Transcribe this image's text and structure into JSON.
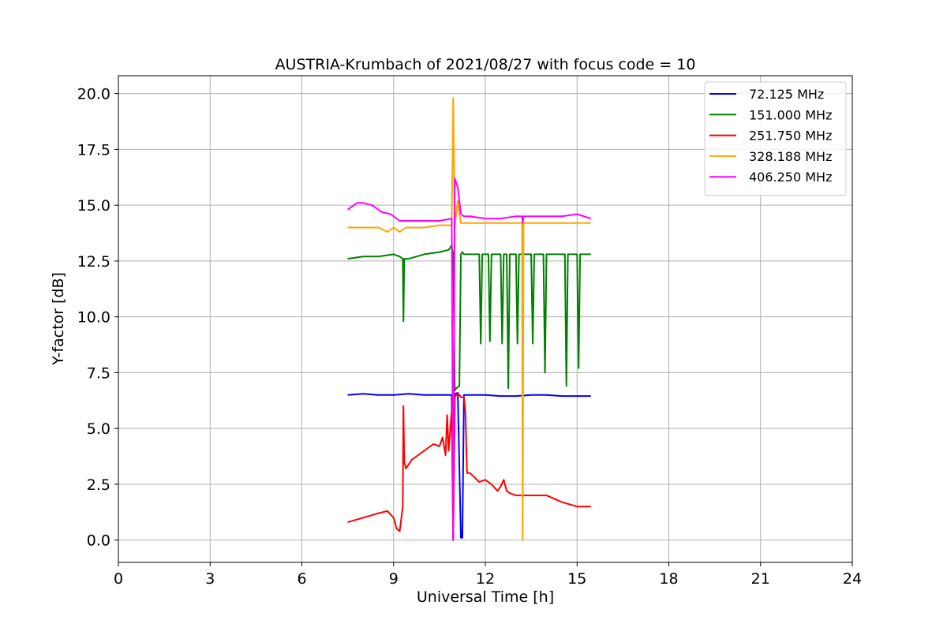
{
  "chart_data": {
    "type": "line",
    "title": "AUSTRIA-Krumbach of 2021/08/27 with focus code = 10",
    "xlabel": "Universal Time [h]",
    "ylabel": "Y-factor [dB]",
    "xlim": [
      0,
      24
    ],
    "ylim": [
      -1.0,
      20.8
    ],
    "xticks": [
      0,
      3,
      6,
      9,
      12,
      15,
      18,
      21,
      24
    ],
    "xtick_labels": [
      "0",
      "3",
      "6",
      "9",
      "12",
      "15",
      "18",
      "21",
      "24"
    ],
    "yticks": [
      0.0,
      2.5,
      5.0,
      7.5,
      10.0,
      12.5,
      15.0,
      17.5,
      20.0
    ],
    "ytick_labels": [
      "0.0",
      "2.5",
      "5.0",
      "7.5",
      "10.0",
      "12.5",
      "15.0",
      "17.5",
      "20.0"
    ],
    "grid": true,
    "legend_position": "top-right",
    "series": [
      {
        "name": " 72.125 MHz",
        "color": "#0000ff",
        "x": [
          7.5,
          8.0,
          8.5,
          9.0,
          9.5,
          10.0,
          10.5,
          10.9,
          10.95,
          11.0,
          11.1,
          11.2,
          11.22,
          11.25,
          11.3,
          11.4,
          11.6,
          12.0,
          12.5,
          13.0,
          13.5,
          14.0,
          14.5,
          15.0,
          15.45
        ],
        "y": [
          6.5,
          6.55,
          6.5,
          6.5,
          6.55,
          6.5,
          6.5,
          6.5,
          0.0,
          6.55,
          6.6,
          0.1,
          0.4,
          0.1,
          6.5,
          6.5,
          6.5,
          6.5,
          6.45,
          6.45,
          6.5,
          6.5,
          6.45,
          6.45,
          6.45
        ]
      },
      {
        "name": "151.000 MHz",
        "color": "#008000",
        "x": [
          7.5,
          8.0,
          8.5,
          9.0,
          9.2,
          9.3,
          9.32,
          9.35,
          9.5,
          10.0,
          10.5,
          10.8,
          10.9,
          10.95,
          11.0,
          11.05,
          11.15,
          11.2,
          11.25,
          11.3,
          11.4,
          11.8,
          11.85,
          11.9,
          12.1,
          12.15,
          12.2,
          12.3,
          12.5,
          12.55,
          12.6,
          12.7,
          12.75,
          12.8,
          13.0,
          13.05,
          13.1,
          13.5,
          13.55,
          13.6,
          13.9,
          13.95,
          14.0,
          14.6,
          14.65,
          14.7,
          15.0,
          15.05,
          15.1,
          15.45
        ],
        "y": [
          12.6,
          12.7,
          12.7,
          12.8,
          12.7,
          12.6,
          9.8,
          12.6,
          12.6,
          12.8,
          12.9,
          13.0,
          13.2,
          12.8,
          6.7,
          6.8,
          6.9,
          12.8,
          12.9,
          12.8,
          12.8,
          12.8,
          8.8,
          12.8,
          12.8,
          8.9,
          12.8,
          12.8,
          12.8,
          8.8,
          12.8,
          12.8,
          6.8,
          12.8,
          12.8,
          8.8,
          12.8,
          12.8,
          8.8,
          12.8,
          12.8,
          7.5,
          12.8,
          12.8,
          6.9,
          12.8,
          12.8,
          7.7,
          12.8,
          12.8
        ]
      },
      {
        "name": "251.750 MHz",
        "color": "#ff0000",
        "x": [
          7.5,
          8.0,
          8.5,
          8.8,
          9.0,
          9.1,
          9.2,
          9.3,
          9.32,
          9.35,
          9.4,
          9.6,
          10.0,
          10.3,
          10.5,
          10.6,
          10.7,
          10.75,
          10.8,
          10.9,
          10.95,
          11.0,
          11.1,
          11.2,
          11.3,
          11.35,
          11.4,
          11.5,
          11.8,
          12.0,
          12.2,
          12.4,
          12.5,
          12.6,
          12.7,
          12.8,
          13.0,
          13.5,
          14.0,
          14.5,
          15.0,
          15.45
        ],
        "y": [
          0.8,
          1.0,
          1.2,
          1.3,
          1.0,
          0.5,
          0.4,
          1.5,
          6.0,
          3.5,
          3.2,
          3.6,
          4.0,
          4.3,
          4.2,
          4.6,
          3.8,
          5.6,
          4.0,
          5.8,
          0.0,
          6.4,
          6.6,
          6.4,
          6.4,
          5.7,
          3.0,
          3.0,
          2.6,
          2.7,
          2.5,
          2.2,
          2.4,
          2.7,
          2.2,
          2.1,
          2.0,
          2.0,
          2.0,
          1.7,
          1.5,
          1.5
        ]
      },
      {
        "name": "328.188 MHz",
        "color": "#ffa500",
        "x": [
          7.5,
          8.0,
          8.5,
          8.8,
          9.0,
          9.2,
          9.4,
          9.6,
          10.0,
          10.5,
          10.9,
          10.95,
          11.0,
          11.1,
          11.15,
          11.2,
          11.3,
          11.5,
          12.0,
          12.5,
          13.0,
          13.2,
          13.22,
          13.25,
          13.3,
          13.5,
          14.0,
          14.5,
          15.0,
          15.45
        ],
        "y": [
          14.0,
          14.0,
          14.0,
          13.8,
          14.0,
          13.8,
          14.0,
          14.0,
          14.0,
          14.1,
          14.1,
          19.8,
          14.1,
          15.2,
          14.6,
          14.2,
          14.2,
          14.2,
          14.2,
          14.2,
          14.2,
          14.2,
          0.0,
          14.2,
          14.2,
          14.2,
          14.2,
          14.2,
          14.2,
          14.2
        ]
      },
      {
        "name": "406.250 MHz",
        "color": "#ff00ff",
        "x": [
          7.5,
          7.8,
          8.0,
          8.3,
          8.6,
          8.9,
          9.2,
          9.5,
          10.0,
          10.5,
          10.9,
          10.95,
          11.0,
          11.1,
          11.2,
          11.3,
          11.5,
          12.0,
          12.5,
          13.0,
          13.2,
          13.22,
          13.25,
          13.5,
          14.0,
          14.5,
          15.0,
          15.45
        ],
        "y": [
          14.8,
          15.1,
          15.1,
          15.0,
          14.7,
          14.6,
          14.3,
          14.3,
          14.3,
          14.3,
          14.4,
          0.0,
          16.2,
          15.8,
          14.6,
          14.5,
          14.5,
          14.4,
          14.4,
          14.5,
          14.5,
          14.2,
          14.5,
          14.5,
          14.5,
          14.5,
          14.6,
          14.4
        ]
      }
    ]
  }
}
